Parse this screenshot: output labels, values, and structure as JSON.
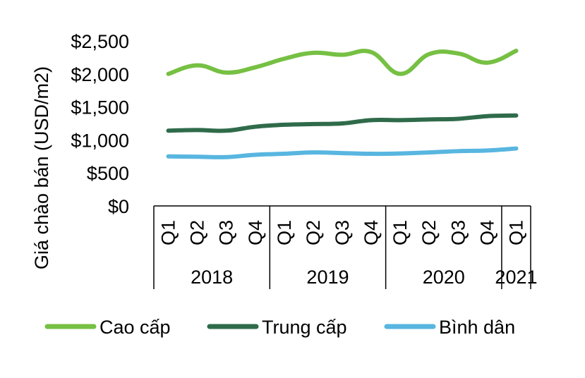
{
  "chart_data": {
    "type": "line",
    "title": "",
    "ylabel": "Giá chào bán (USD/m2)",
    "xlabel": "",
    "ylim": [
      0,
      2500
    ],
    "yticks": [
      0,
      500,
      1000,
      1500,
      2000,
      2500
    ],
    "ytick_labels": [
      "$0",
      "$500",
      "$1,000",
      "$1,500",
      "$2,000",
      "$2,500"
    ],
    "categories": [
      "Q1",
      "Q2",
      "Q3",
      "Q4",
      "Q1",
      "Q2",
      "Q3",
      "Q4",
      "Q1",
      "Q2",
      "Q3",
      "Q4",
      "Q1"
    ],
    "years": [
      {
        "label": "2018",
        "count": 4
      },
      {
        "label": "2019",
        "count": 4
      },
      {
        "label": "2020",
        "count": 4
      },
      {
        "label": "2021",
        "count": 1
      }
    ],
    "series": [
      {
        "name": "Cao cấp",
        "color": "#76c043",
        "values": [
          2000,
          2130,
          2020,
          2100,
          2230,
          2320,
          2290,
          2330,
          2000,
          2300,
          2310,
          2170,
          2350
        ]
      },
      {
        "name": "Trung cấp",
        "color": "#2f6b4a",
        "values": [
          1140,
          1150,
          1140,
          1200,
          1230,
          1240,
          1250,
          1300,
          1300,
          1310,
          1320,
          1360,
          1370
        ]
      },
      {
        "name": "Bình dân",
        "color": "#58b6e0",
        "values": [
          750,
          745,
          740,
          775,
          790,
          810,
          800,
          790,
          795,
          810,
          830,
          840,
          870
        ]
      }
    ],
    "legend_position": "bottom"
  }
}
